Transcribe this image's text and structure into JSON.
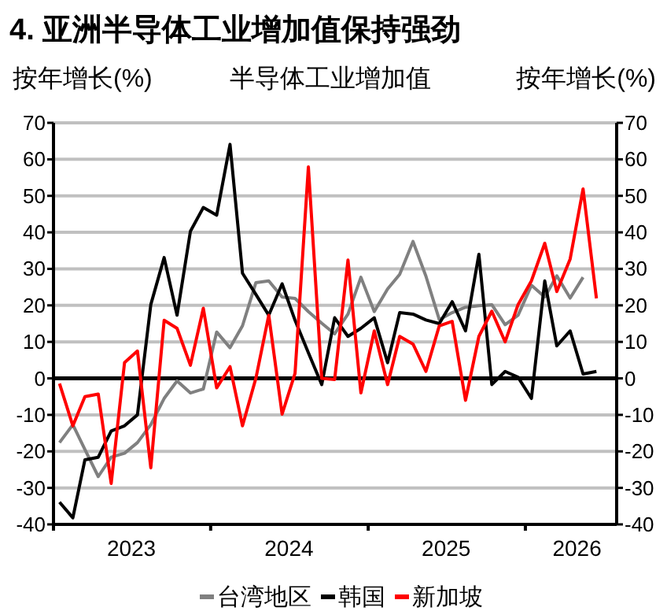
{
  "chart_data": {
    "type": "line",
    "title": "4. 亚洲半导体工业增加值保持强劲",
    "subtitle": "半导体工业增加值",
    "ylabel": "按年增长(%)",
    "y2label": "按年增长(%)",
    "x": [
      "2023-01-15",
      "2023-02-15",
      "2023-03-15",
      "2023-04-15",
      "2023-05-15",
      "2023-06-15",
      "2023-07-15",
      "2023-08-15",
      "2023-09-15",
      "2023-10-15",
      "2023-11-15",
      "2023-12-15",
      "2024-01-15",
      "2024-02-15",
      "2024-03-15",
      "2024-04-15",
      "2024-05-15",
      "2024-06-15",
      "2024-07-15",
      "2024-08-15",
      "2024-09-15",
      "2024-10-15",
      "2024-11-15",
      "2024-12-15",
      "2025-01-15",
      "2025-02-15",
      "2025-03-15",
      "2025-04-15",
      "2025-05-15",
      "2025-06-15",
      "2025-07-15",
      "2025-08-15",
      "2025-09-15",
      "2025-10-15",
      "2025-11-15",
      "2025-12-15",
      "2026-01-15",
      "2026-02-15",
      "2026-03-15",
      "2026-04-15",
      "2026-05-15",
      "2026-06-15"
    ],
    "series": [
      {
        "name": "台湾地区",
        "color": "#808080",
        "values": [
          -17.6,
          -12.7,
          -19.5,
          -26.9,
          -21.6,
          -20.5,
          -17.6,
          -12.7,
          -5.5,
          -0.7,
          -4,
          -2.9,
          12.7,
          8.4,
          14.4,
          26.2,
          26.7,
          22.3,
          21.9,
          18.3,
          15.1,
          12.2,
          17.6,
          27.7,
          18.3,
          24.5,
          28.5,
          37.5,
          28,
          16.1,
          18,
          19.5,
          19.9,
          20.2,
          14.7,
          17.3,
          25.5,
          22.3,
          28.1,
          22,
          27.7,
          null
        ]
      },
      {
        "name": "韩国",
        "color": "#000000",
        "values": [
          -33.9,
          -38.2,
          -22.3,
          -21.6,
          -14.4,
          -13,
          -10,
          20.2,
          33.1,
          17.3,
          40.3,
          46.8,
          44.7,
          64.1,
          28.8,
          23,
          17.3,
          25.9,
          15.9,
          7,
          -1.7,
          16.6,
          11.5,
          13.7,
          16.6,
          4.3,
          18,
          17.6,
          16,
          15,
          21,
          13,
          34,
          -1.7,
          1.9,
          0.3,
          -5.5,
          26.7,
          8.9,
          13,
          1.2,
          1.9
        ]
      },
      {
        "name": "新加坡",
        "color": "#ff0000",
        "values": [
          -1.4,
          -13,
          -5,
          -4.3,
          -28.8,
          4.3,
          7.5,
          -24.5,
          15.9,
          13.7,
          3.6,
          19.2,
          -2.6,
          3.2,
          -13,
          0,
          17.3,
          -9.8,
          1.4,
          57.9,
          0,
          -0.3,
          32.4,
          -4,
          13,
          -1.7,
          11.5,
          9.4,
          1.9,
          14.4,
          15.6,
          -6,
          11.5,
          18.4,
          10,
          20.2,
          26.7,
          37,
          23.8,
          32.7,
          51.9,
          21.9
        ]
      }
    ],
    "xlim": [
      "2023-01-01",
      "2026-08-01"
    ],
    "xticks": [
      {
        "value": "2023-01-01",
        "label": null
      },
      {
        "value": "2023-07-01",
        "label": "2023"
      },
      {
        "value": "2024-01-01",
        "label": null
      },
      {
        "value": "2024-07-01",
        "label": "2024"
      },
      {
        "value": "2025-01-01",
        "label": null
      },
      {
        "value": "2025-07-01",
        "label": "2025"
      },
      {
        "value": "2026-01-01",
        "label": null
      },
      {
        "value": "2026-05-01",
        "label": "2026"
      }
    ],
    "ylim": [
      -40,
      70
    ],
    "yticks": [
      -40,
      -30,
      -20,
      -10,
      0,
      10,
      20,
      30,
      40,
      50,
      60,
      70
    ],
    "y2lim": [
      -40,
      70
    ],
    "y2ticks": [
      -40,
      -30,
      -20,
      -10,
      0,
      10,
      20,
      30,
      40,
      50,
      60,
      70
    ],
    "ref_lines": [
      {
        "axis": "y",
        "value": 0,
        "color": "#000000"
      }
    ],
    "grid": "y",
    "legend": "bottom",
    "marker": "none",
    "line_style": "solid"
  }
}
